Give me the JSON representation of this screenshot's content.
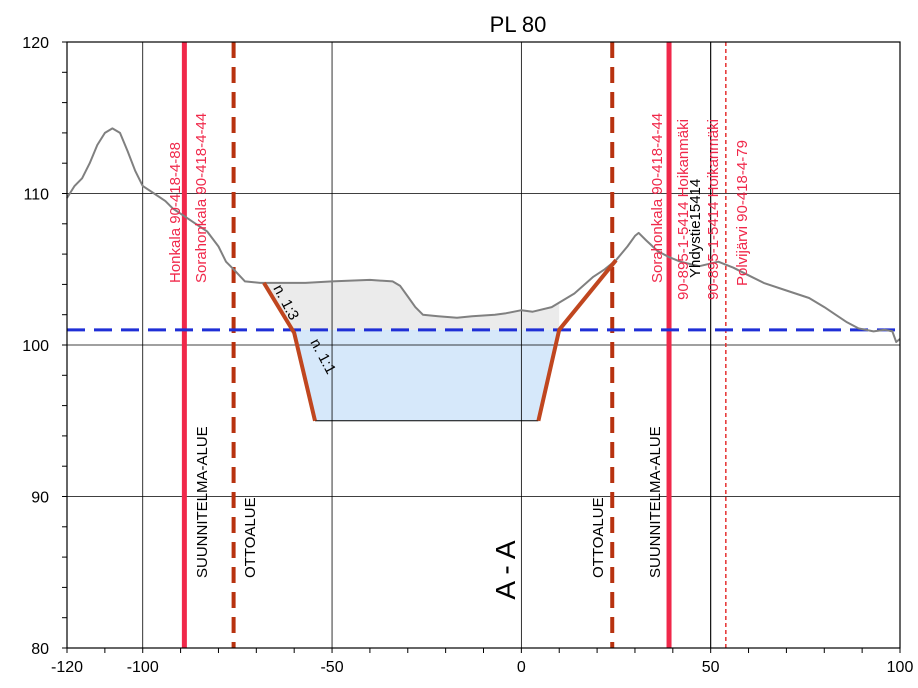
{
  "chart_data": {
    "type": "line",
    "title": "PL 80",
    "xlabel": "",
    "ylabel": "",
    "xlim": [
      -120,
      100
    ],
    "ylim": [
      80,
      120
    ],
    "xticks": [
      -120,
      -100,
      -50,
      0,
      50,
      100
    ],
    "yticks": [
      80,
      90,
      100,
      110,
      120
    ],
    "x_gridlines": [
      -100,
      -50,
      0,
      50,
      100
    ],
    "y_gridlines": [
      90,
      100,
      110
    ],
    "grid": true,
    "section_label": "A - A",
    "series": [
      {
        "color": "#808080",
        "points": [
          [
            -120,
            109.7
          ],
          [
            -118,
            110.5
          ],
          [
            -116,
            111
          ],
          [
            -114,
            112
          ],
          [
            -112,
            113.2
          ],
          [
            -110,
            114
          ],
          [
            -108,
            114.3
          ],
          [
            -106,
            114
          ],
          [
            -104,
            112.8
          ],
          [
            -102,
            111.5
          ],
          [
            -100,
            110.5
          ],
          [
            -97,
            110
          ],
          [
            -94,
            109.5
          ],
          [
            -92,
            109
          ],
          [
            -89,
            108.5
          ],
          [
            -86,
            108
          ],
          [
            -83,
            107.5
          ],
          [
            -80,
            106.5
          ],
          [
            -78,
            105.5
          ],
          [
            -76,
            105
          ],
          [
            -73,
            104.2
          ],
          [
            -69,
            104.1
          ],
          [
            -62,
            104.1
          ],
          [
            -57,
            104.1
          ],
          [
            -50,
            104.2
          ],
          [
            -40,
            104.3
          ],
          [
            -34,
            104.2
          ],
          [
            -32,
            103.9
          ],
          [
            -30,
            103.2
          ],
          [
            -28,
            102.5
          ],
          [
            -26,
            102
          ],
          [
            -22,
            101.9
          ],
          [
            -17,
            101.8
          ],
          [
            -13,
            101.9
          ],
          [
            -7,
            102
          ],
          [
            -4,
            102.1
          ],
          [
            0,
            102.3
          ],
          [
            3,
            102.2
          ],
          [
            8,
            102.5
          ],
          [
            14,
            103.4
          ],
          [
            19,
            104.5
          ],
          [
            22,
            105
          ],
          [
            25,
            105.6
          ],
          [
            28,
            106.5
          ],
          [
            30,
            107.2
          ],
          [
            31,
            107.4
          ],
          [
            33,
            106.9
          ],
          [
            36,
            106.2
          ],
          [
            39,
            105.8
          ],
          [
            42,
            105.5
          ],
          [
            47,
            105.2
          ],
          [
            52,
            105.5
          ],
          [
            56,
            105.1
          ],
          [
            60,
            104.6
          ],
          [
            64,
            104.1
          ],
          [
            70,
            103.6
          ],
          [
            76,
            103.1
          ],
          [
            80,
            102.5
          ],
          [
            83,
            102
          ],
          [
            86,
            101.5
          ],
          [
            89,
            101.1
          ],
          [
            93,
            100.9
          ],
          [
            96,
            101
          ],
          [
            98,
            100.9
          ],
          [
            99,
            100.2
          ],
          [
            100,
            100.4
          ]
        ]
      },
      {
        "color": "#C0461F",
        "points": [
          [
            -68,
            104.1
          ],
          [
            -60,
            100.8
          ],
          [
            -54.5,
            95
          ]
        ]
      },
      {
        "color": "#C0461F",
        "points": [
          [
            4.5,
            95
          ],
          [
            10,
            101
          ],
          [
            25,
            105.6
          ]
        ]
      }
    ],
    "hlines": [
      {
        "y": 101,
        "color": "#1F2FD6",
        "style": "dashed"
      }
    ],
    "vlines": [
      {
        "x": -89,
        "color": "#F0284A",
        "style": "solid",
        "labels": [
          {
            "text": "Honkala 90-418-4-88",
            "color": "#F0284A",
            "y_from": 104,
            "y_to": 119
          },
          {
            "text": "Sorahonkala 90-418-4-44",
            "color": "#F0284A",
            "y_from": 104,
            "y_to": 119
          }
        ]
      },
      {
        "x": -76,
        "color": "#B8320F",
        "style": "dashed",
        "labels": []
      },
      {
        "x": 24,
        "color": "#B8320F",
        "style": "dashed",
        "labels": []
      },
      {
        "x": 39,
        "color": "#F0284A",
        "style": "solid",
        "labels": [
          {
            "text": "Sorahonkala 90-418-4-44",
            "color": "#F0284A",
            "y_from": 104,
            "y_to": 119
          },
          {
            "text": "90-895-1-5414 Hoikanmäki",
            "color": "#F0284A",
            "y_from": 104,
            "y_to": 119
          },
          {
            "text": "Yhdystie15414",
            "color": "#000000",
            "y_from": 104,
            "y_to": 119
          }
        ]
      },
      {
        "x": 50,
        "color": "#000000",
        "style": "thin",
        "labels": []
      },
      {
        "x": 54,
        "color": "#E53030",
        "style": "finedash",
        "labels": [
          {
            "text": "90-895-1-5414 Hoikanmäki",
            "color": "#F0284A",
            "y_from": 104,
            "y_to": 119
          },
          {
            "text": "Polvijärvi 90-418-4-79",
            "color": "#F0284A",
            "y_from": 104,
            "y_to": 119
          }
        ]
      }
    ],
    "areas": [
      {
        "name": "fill",
        "color": "#EBEBEB"
      },
      {
        "name": "water",
        "color": "#D6E8FA"
      }
    ],
    "annotations": [
      {
        "text": "SUUNNITELMA-ALUE",
        "color": "#000000"
      },
      {
        "text": "OTTOALUE",
        "color": "#000000"
      },
      {
        "text": "OTTOALUE",
        "color": "#000000"
      },
      {
        "text": "SUUNNITELMA-ALUE",
        "color": "#000000"
      },
      {
        "text": "n. 1:3",
        "color": "#000000"
      },
      {
        "text": "n. 1:1",
        "color": "#000000"
      }
    ]
  }
}
